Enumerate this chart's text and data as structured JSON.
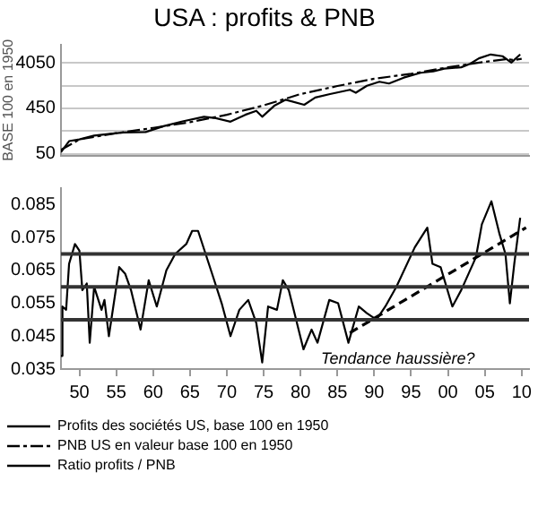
{
  "chart_data": [
    {
      "type": "line",
      "title": "USA : profits & PNB",
      "ylabel": "BASE 100 en 1950",
      "log": "y",
      "grid": "y",
      "legend": "bottom",
      "marker": "none",
      "tick_labels": "y",
      "xlim": [
        1947.5,
        2011
      ],
      "ylim": [
        45,
        10000
      ],
      "yticks": [
        50,
        {
          "value": 150,
          "label": null
        },
        450,
        {
          "value": 1350,
          "label": null
        },
        4050
      ],
      "series": [
        {
          "name": "Profits des sociétés US, base 100 en 1950",
          "color": "#000000",
          "line_style": "solid",
          "x": [
            1947.5,
            1948.6,
            1950,
            1952,
            1954.2,
            1956,
            1959,
            1961.4,
            1964,
            1966.9,
            1968.5,
            1970.5,
            1972.5,
            1974,
            1974.8,
            1976.5,
            1978,
            1980.5,
            1982,
            1984,
            1986.7,
            1987.5,
            1989,
            1990.7,
            1992,
            1994,
            1996.3,
            1998,
            1999.5,
            2001.8,
            2003,
            2004.2,
            2005.8,
            2007.4,
            2008.6,
            2009.8
          ],
          "values": [
            54,
            92,
            100,
            120,
            131,
            140,
            143,
            190,
            240,
            300,
            280,
            236,
            330,
            400,
            300,
            520,
            685,
            535,
            760,
            900,
            1110,
            960,
            1350,
            1640,
            1500,
            2000,
            2530,
            2700,
            3100,
            3300,
            3900,
            5100,
            6150,
            5650,
            4150,
            6150
          ]
        },
        {
          "name": "PNB US en valeur base 100 en 1950",
          "color": "#000000",
          "line_style": "dashdot",
          "x": [
            1947.5,
            1950,
            1955,
            1960,
            1965,
            1970,
            1975,
            1980,
            1985,
            1990,
            1995,
            2000,
            2005,
            2008,
            2009,
            2010
          ],
          "values": [
            60,
            100,
            135,
            175,
            230,
            330,
            520,
            900,
            1330,
            1900,
            2400,
            3300,
            4300,
            4900,
            4700,
            5000
          ]
        }
      ]
    },
    {
      "type": "line",
      "legend": "bottom",
      "marker": "none",
      "xlim": [
        1947.5,
        2011
      ],
      "xticks": [
        {
          "value": 1950,
          "label": "50"
        },
        {
          "value": 1955,
          "label": "55"
        },
        {
          "value": 1960,
          "label": "60"
        },
        {
          "value": 1965,
          "label": "65"
        },
        {
          "value": 1970,
          "label": "70"
        },
        {
          "value": 1975,
          "label": "75"
        },
        {
          "value": 1980,
          "label": "80"
        },
        {
          "value": 1985,
          "label": "85"
        },
        {
          "value": 1990,
          "label": "90"
        },
        {
          "value": 1995,
          "label": "95"
        },
        {
          "value": 2000,
          "label": "00"
        },
        {
          "value": 2005,
          "label": "05"
        },
        {
          "value": 2010,
          "label": "10"
        }
      ],
      "ylim": [
        0.035,
        0.09
      ],
      "yticks": [
        0.035,
        0.045,
        0.055,
        0.065,
        0.075,
        0.085
      ],
      "series": [
        {
          "name": "Ratio profits / PNB",
          "color": "#000000",
          "line_style": "solid",
          "x": [
            1947.5,
            1947.7,
            1948.2,
            1948.6,
            1949.4,
            1950,
            1950.4,
            1951,
            1951.4,
            1952,
            1953,
            1953.4,
            1954,
            1955.4,
            1956.2,
            1957,
            1958.3,
            1959.4,
            1960.5,
            1961.8,
            1963,
            1964.5,
            1965.3,
            1966.1,
            1968,
            1969.3,
            1970.5,
            1971.7,
            1972.9,
            1974,
            1974.8,
            1975.6,
            1976.8,
            1977.6,
            1978.4,
            1980.4,
            1981.5,
            1982.3,
            1983.9,
            1985.1,
            1986.5,
            1987.9,
            1989,
            1990.3,
            1991.5,
            1993,
            1995.5,
            1997.2,
            1997.9,
            1999,
            2000.6,
            2001.8,
            2003.8,
            2004.6,
            2005.9,
            2007,
            2007.8,
            2008.4,
            2009,
            2009.8
          ],
          "values": [
            0.039,
            0.054,
            0.053,
            0.067,
            0.073,
            0.071,
            0.059,
            0.061,
            0.043,
            0.06,
            0.053,
            0.056,
            0.045,
            0.066,
            0.064,
            0.059,
            0.047,
            0.062,
            0.054,
            0.065,
            0.07,
            0.073,
            0.077,
            0.077,
            0.064,
            0.055,
            0.045,
            0.053,
            0.056,
            0.049,
            0.037,
            0.054,
            0.053,
            0.062,
            0.059,
            0.041,
            0.047,
            0.043,
            0.056,
            0.055,
            0.043,
            0.054,
            0.052,
            0.05,
            0.054,
            0.06,
            0.072,
            0.078,
            0.067,
            0.066,
            0.054,
            0.059,
            0.069,
            0.079,
            0.086,
            0.076,
            0.07,
            0.055,
            0.067,
            0.081
          ]
        },
        {
          "type": "line",
          "color": "#000000",
          "line_style": "dashed",
          "x": [
            1986.7,
            2010.6
          ],
          "values": [
            0.046,
            0.078
          ]
        }
      ],
      "ref_lines": [
        {
          "axis": "y",
          "value": 0.07,
          "color": "#333333"
        },
        {
          "axis": "y",
          "value": 0.06,
          "color": "#333333"
        },
        {
          "axis": "y",
          "value": 0.05,
          "color": "#333333"
        }
      ],
      "annotations": [
        "Tendance haussière?"
      ]
    }
  ]
}
